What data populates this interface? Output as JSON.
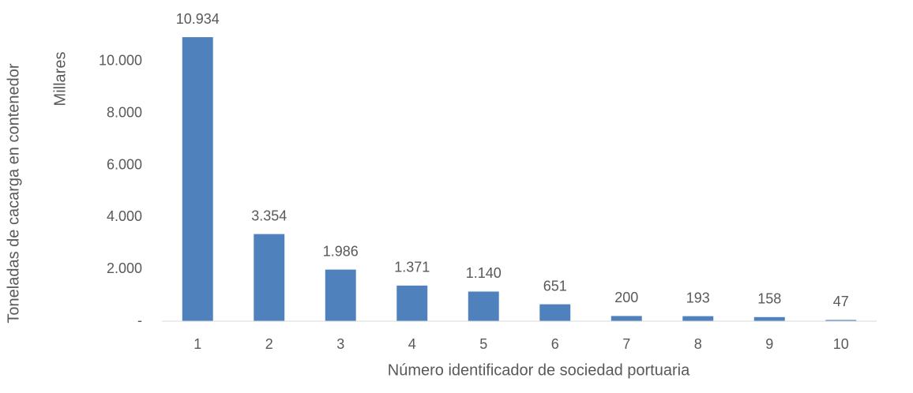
{
  "chart_data": {
    "type": "bar",
    "y_axis_title": "Toneladas de cacarga en contenedor",
    "y_axis_unit": "Millares",
    "x_axis_title": "Número identificador de sociedad  portuaria",
    "categories": [
      "1",
      "2",
      "3",
      "4",
      "5",
      "6",
      "7",
      "8",
      "9",
      "10"
    ],
    "values": [
      10934,
      3354,
      1986,
      1371,
      1140,
      651,
      200,
      193,
      158,
      47
    ],
    "value_labels": [
      "10.934",
      "3.354",
      "1.986",
      "1.371",
      "1.140",
      "651",
      "200",
      "193",
      "158",
      "47"
    ],
    "color": "#4f81bd",
    "ylim": [
      0,
      12000
    ],
    "yticks": [
      {
        "value": 0,
        "label": "-"
      },
      {
        "value": 2000,
        "label": "2.000"
      },
      {
        "value": 4000,
        "label": "4.000"
      },
      {
        "value": 6000,
        "label": "6.000"
      },
      {
        "value": 8000,
        "label": "8.000"
      },
      {
        "value": 10000,
        "label": "10.000"
      }
    ],
    "grid": false
  }
}
